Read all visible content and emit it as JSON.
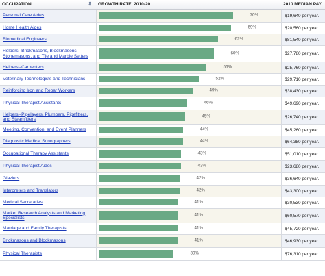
{
  "colors": {
    "bar": "#6aa985",
    "link": "#1a39b8",
    "row_alt": "#eef1f7"
  },
  "header": {
    "occupation": "OCCUPATION",
    "sort_icon": "sort-arrows-icon",
    "growth": "GROWTH RATE, 2010-20",
    "pay": "2010 MEDIAN PAY"
  },
  "chart_data": {
    "type": "bar",
    "orientation": "horizontal",
    "title": "",
    "xlabel": "GROWTH RATE, 2010-20",
    "ylabel": "OCCUPATION",
    "unit": "%",
    "xlim": [
      0,
      100
    ],
    "grid": false,
    "legend": "none",
    "rows": [
      {
        "occupation": "Personal Care Aides",
        "value": 70,
        "label": "70%",
        "pay": "$19,640 per year."
      },
      {
        "occupation": "Home Health Aides",
        "value": 69,
        "label": "69%",
        "pay": "$20,560 per year."
      },
      {
        "occupation": "Biomedical Engineers",
        "value": 62,
        "label": "62%",
        "pay": "$81,540 per year."
      },
      {
        "occupation": "Helpers--Brickmasons, Blockmasons, Stonemasons, and Tile and Marble Setters",
        "value": 60,
        "label": "60%",
        "pay": "$27,780 per year."
      },
      {
        "occupation": "Helpers--Carpenters",
        "value": 56,
        "label": "56%",
        "pay": "$25,760 per year."
      },
      {
        "occupation": "Veterinary Technologists and Technicians",
        "value": 52,
        "label": "52%",
        "pay": "$29,710 per year."
      },
      {
        "occupation": "Reinforcing Iron and Rebar Workers",
        "value": 49,
        "label": "49%",
        "pay": "$38,430 per year."
      },
      {
        "occupation": "Physical Therapist Assistants",
        "value": 46,
        "label": "46%",
        "pay": "$49,690 per year."
      },
      {
        "occupation": "Helpers--Pipelayers, Plumbers, Pipefitters, and Steamfitters",
        "value": 45,
        "label": "45%",
        "pay": "$26,740 per year."
      },
      {
        "occupation": "Meeting, Convention, and Event Planners",
        "value": 44,
        "label": "44%",
        "pay": "$45,260 per year."
      },
      {
        "occupation": "Diagnostic Medical Sonographers",
        "value": 44,
        "label": "44%",
        "pay": "$64,380 per year."
      },
      {
        "occupation": "Occupational Therapy Assistants",
        "value": 43,
        "label": "43%",
        "pay": "$51,010 per year."
      },
      {
        "occupation": "Physical Therapist Aides",
        "value": 43,
        "label": "43%",
        "pay": "$23,680 per year."
      },
      {
        "occupation": "Glaziers",
        "value": 42,
        "label": "42%",
        "pay": "$36,640 per year."
      },
      {
        "occupation": "Interpreters and Translators",
        "value": 42,
        "label": "42%",
        "pay": "$43,300 per year."
      },
      {
        "occupation": "Medical Secretaries",
        "value": 41,
        "label": "41%",
        "pay": "$30,530 per year."
      },
      {
        "occupation": "Market Research Analysts and Marketing Specialists",
        "value": 41,
        "label": "41%",
        "pay": "$60,570 per year."
      },
      {
        "occupation": "Marriage and Family Therapists",
        "value": 41,
        "label": "41%",
        "pay": "$45,720 per year."
      },
      {
        "occupation": "Brickmasons and Blockmasons",
        "value": 41,
        "label": "41%",
        "pay": "$46,930 per year."
      },
      {
        "occupation": "Physical Therapists",
        "value": 39,
        "label": "39%",
        "pay": "$76,310 per year."
      }
    ]
  }
}
